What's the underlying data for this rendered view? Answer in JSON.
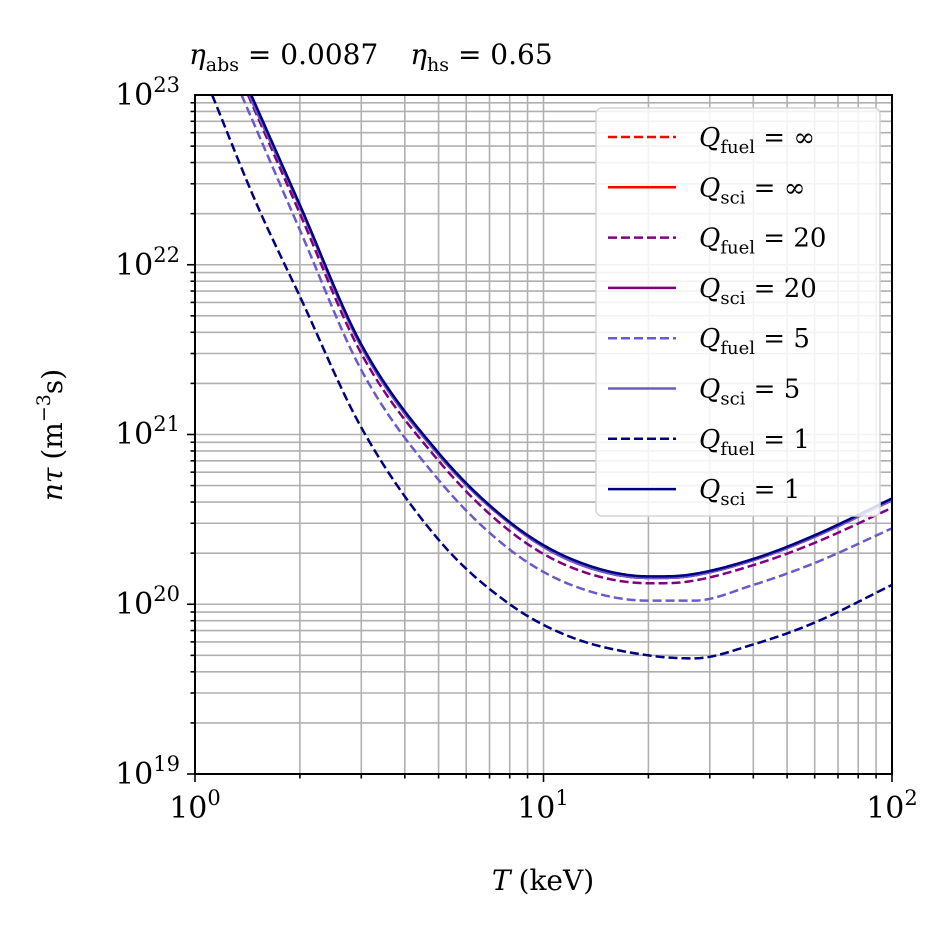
{
  "chart_data": {
    "type": "line",
    "title": "η_abs = 0.0087    η_hs = 0.65",
    "title_parts": {
      "abs_symbol": "η",
      "abs_sub": "abs",
      "abs_value": " = 0.0087",
      "hs_symbol": "η",
      "hs_sub": "hs",
      "hs_value": " = 0.65"
    },
    "xlabel": "T (keV)",
    "xlabel_parts": {
      "symbol": "T",
      "unit": "(keV)"
    },
    "ylabel": "nτ (m⁻³s)",
    "ylabel_parts": {
      "symbol": "nτ",
      "unit_open": "(m",
      "unit_exp": "−3",
      "unit_close": "s)"
    },
    "xscale": "log",
    "yscale": "log",
    "xlim": [
      1,
      100
    ],
    "ylim": [
      1e+19,
      1e+23
    ],
    "grid": true,
    "legend_position": "upper right",
    "x_ticks": [
      {
        "value": 1,
        "base": "10",
        "exp": "0"
      },
      {
        "value": 10,
        "base": "10",
        "exp": "1"
      },
      {
        "value": 100,
        "base": "10",
        "exp": "2"
      }
    ],
    "y_ticks": [
      {
        "value": 1e+19,
        "base": "10",
        "exp": "19"
      },
      {
        "value": 1e+20,
        "base": "10",
        "exp": "20"
      },
      {
        "value": 1e+21,
        "base": "10",
        "exp": "21"
      },
      {
        "value": 1e+22,
        "base": "10",
        "exp": "22"
      },
      {
        "value": 1e+23,
        "base": "10",
        "exp": "23"
      }
    ],
    "series": [
      {
        "name": "Q_fuel = ∞",
        "label_sub": "fuel",
        "label_value": " = ∞",
        "color": "#ff0000",
        "dash": true,
        "x": [
          1.43,
          2,
          3,
          5,
          8,
          12,
          20,
          26,
          40,
          60,
          100
        ],
        "y": [
          1e+23,
          2.2e+22,
          3.3e+21,
          7.6e+20,
          3e+20,
          1.8e+20,
          1.43e+20,
          1.46e+20,
          1.82e+20,
          2.5e+20,
          4.1e+20
        ]
      },
      {
        "name": "Q_sci = ∞",
        "label_sub": "sci",
        "label_value": " = ∞",
        "color": "#ff0000",
        "dash": false,
        "x": [
          1.43,
          2,
          3,
          5,
          8,
          12,
          20,
          26,
          40,
          60,
          100
        ],
        "y": [
          1e+23,
          2.2e+22,
          3.3e+21,
          7.6e+20,
          3e+20,
          1.8e+20,
          1.43e+20,
          1.46e+20,
          1.82e+20,
          2.5e+20,
          4.1e+20
        ]
      },
      {
        "name": "Q_fuel = 20",
        "label_sub": "fuel",
        "label_value": " = 20",
        "color": "#800080",
        "dash": true,
        "x": [
          1.42,
          2,
          3,
          5,
          8,
          12,
          20,
          26,
          40,
          60,
          100
        ],
        "y": [
          1e+23,
          2e+22,
          3e+21,
          7e+20,
          2.7e+20,
          1.65e+20,
          1.33e+20,
          1.36e+20,
          1.7e+20,
          2.3e+20,
          3.7e+20
        ]
      },
      {
        "name": "Q_sci = 20",
        "label_sub": "sci",
        "label_value": " = 20",
        "color": "#800080",
        "dash": false,
        "x": [
          1.43,
          2,
          3,
          5,
          8,
          12,
          20,
          26,
          40,
          60,
          100
        ],
        "y": [
          1e+23,
          2.2e+22,
          3.3e+21,
          7.6e+20,
          3e+20,
          1.8e+20,
          1.43e+20,
          1.46e+20,
          1.82e+20,
          2.5e+20,
          4.1e+20
        ]
      },
      {
        "name": "Q_fuel = 5",
        "label_sub": "fuel",
        "label_value": " = 5",
        "color": "#6a5acd",
        "dash": true,
        "x": [
          1.36,
          2,
          3,
          5,
          8,
          12,
          20,
          27,
          40,
          60,
          100
        ],
        "y": [
          1e+23,
          1.6e+22,
          2.4e+21,
          5.4e+20,
          2.1e+20,
          1.3e+20,
          1.05e+20,
          1.05e+20,
          1.3e+20,
          1.75e+20,
          2.8e+20
        ]
      },
      {
        "name": "Q_sci = 5",
        "label_sub": "sci",
        "label_value": " = 5",
        "color": "#6a5acd",
        "dash": false,
        "x": [
          1.43,
          2,
          3,
          5,
          8,
          12,
          20,
          26,
          40,
          60,
          100
        ],
        "y": [
          1e+23,
          2.2e+22,
          3.3e+21,
          7.6e+20,
          3e+20,
          1.8e+20,
          1.43e+20,
          1.46e+20,
          1.82e+20,
          2.5e+20,
          4.1e+20
        ]
      },
      {
        "name": "Q_fuel = 1",
        "label_sub": "fuel",
        "label_value": " = 1",
        "color": "#000080",
        "dash": true,
        "x": [
          1.12,
          1.5,
          2,
          3,
          5,
          8,
          12,
          20,
          27,
          40,
          60,
          100
        ],
        "y": [
          1e+23,
          2.3e+22,
          6.5e+21,
          1.1e+21,
          2.4e+20,
          1e+20,
          6.4e+19,
          5e+19,
          4.8e+19,
          5.8e+19,
          7.8e+19,
          1.3e+20
        ]
      },
      {
        "name": "Q_sci = 1",
        "label_sub": "sci",
        "label_value": " = 1",
        "color": "#000080",
        "dash": false,
        "x": [
          1.45,
          2,
          3,
          5,
          8,
          12,
          20,
          26,
          40,
          60,
          100
        ],
        "y": [
          1e+23,
          2.25e+22,
          3.4e+21,
          7.8e+20,
          3.05e+20,
          1.85e+20,
          1.46e+20,
          1.49e+20,
          1.85e+20,
          2.55e+20,
          4.2e+20
        ]
      }
    ]
  }
}
